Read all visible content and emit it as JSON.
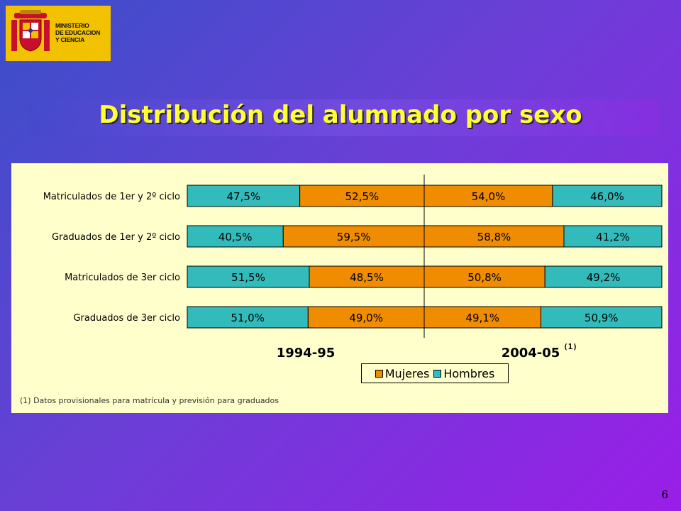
{
  "logo": {
    "text": "MINISTERIO\nDE EDUCACION\nY CIENCIA",
    "icon": "coat-of-arms-icon"
  },
  "title": "Distribución del alumnado por sexo",
  "chart_data": {
    "type": "bar",
    "orientation": "horizontal",
    "stacked": true,
    "categories": [
      "Matriculados de 1er y 2º ciclo",
      "Graduados de 1er y 2º ciclo",
      "Matriculados de 3er ciclo",
      "Graduados de 3er ciclo"
    ],
    "groups": [
      {
        "label": "1994-95",
        "superscript": "",
        "hombres": [
          "47,5%",
          "40,5%",
          "51,5%",
          "51,0%"
        ],
        "mujeres": [
          "52,5%",
          "59,5%",
          "48,5%",
          "49,0%"
        ],
        "hombres_values": [
          47.5,
          40.5,
          51.5,
          51.0
        ],
        "mujeres_values": [
          52.5,
          59.5,
          48.5,
          49.0
        ]
      },
      {
        "label": "2004-05",
        "superscript": "(1)",
        "mujeres": [
          "54,0%",
          "58,8%",
          "50,8%",
          "49,1%"
        ],
        "hombres": [
          "46,0%",
          "41,2%",
          "49,2%",
          "50,9%"
        ],
        "mujeres_values": [
          54.0,
          58.8,
          50.8,
          49.1
        ],
        "hombres_values": [
          46.0,
          41.2,
          49.2,
          50.9
        ]
      }
    ],
    "series": [
      {
        "name": "Mujeres",
        "color": "#f08c00"
      },
      {
        "name": "Hombres",
        "color": "#33bbbb"
      }
    ],
    "legend_position": "bottom",
    "footnote": "(1) Datos provisionales para matrícula y previsión para graduados"
  },
  "page_number": "6"
}
